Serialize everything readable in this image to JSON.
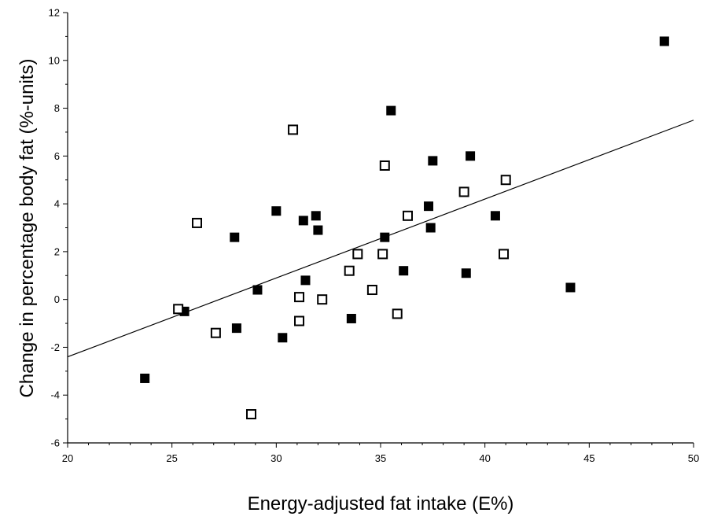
{
  "chart_data": {
    "type": "scatter",
    "title": "",
    "xlabel": "Energy-adjusted fat intake (E%)",
    "ylabel": "Change in percentage body fat (%-units)",
    "xlim": [
      20,
      50
    ],
    "ylim": [
      -6,
      12
    ],
    "x_ticks": [
      20,
      25,
      30,
      35,
      40,
      45,
      50
    ],
    "y_ticks": [
      -6,
      -4,
      -2,
      0,
      2,
      4,
      6,
      8,
      10,
      12
    ],
    "grid": false,
    "legend": "none",
    "series": [
      {
        "marker": "filled-square",
        "color": "#000000",
        "points": [
          [
            23.7,
            -3.3
          ],
          [
            25.6,
            -0.5
          ],
          [
            28.0,
            2.6
          ],
          [
            28.1,
            -1.2
          ],
          [
            29.1,
            0.4
          ],
          [
            30.0,
            3.7
          ],
          [
            30.3,
            -1.6
          ],
          [
            31.3,
            3.3
          ],
          [
            31.4,
            0.8
          ],
          [
            31.9,
            3.5
          ],
          [
            32.0,
            2.9
          ],
          [
            33.6,
            -0.8
          ],
          [
            35.2,
            2.6
          ],
          [
            35.5,
            7.9
          ],
          [
            36.1,
            1.2
          ],
          [
            37.3,
            3.9
          ],
          [
            37.4,
            3.0
          ],
          [
            37.5,
            5.8
          ],
          [
            39.1,
            1.1
          ],
          [
            39.3,
            6.0
          ],
          [
            40.5,
            3.5
          ],
          [
            44.1,
            0.5
          ],
          [
            48.6,
            10.8
          ]
        ]
      },
      {
        "marker": "open-square",
        "color": "#000000",
        "points": [
          [
            25.3,
            -0.4
          ],
          [
            26.2,
            3.2
          ],
          [
            27.1,
            -1.4
          ],
          [
            28.8,
            -4.8
          ],
          [
            30.8,
            7.1
          ],
          [
            31.1,
            0.1
          ],
          [
            31.1,
            -0.9
          ],
          [
            32.2,
            0.0
          ],
          [
            33.5,
            1.2
          ],
          [
            33.9,
            1.9
          ],
          [
            34.6,
            0.4
          ],
          [
            35.1,
            1.9
          ],
          [
            35.2,
            5.6
          ],
          [
            35.8,
            -0.6
          ],
          [
            36.3,
            3.5
          ],
          [
            39.0,
            4.5
          ],
          [
            40.9,
            1.9
          ],
          [
            41.0,
            5.0
          ]
        ]
      }
    ],
    "regression_line": {
      "x": [
        20,
        50
      ],
      "y": [
        -2.4,
        7.5
      ]
    }
  }
}
